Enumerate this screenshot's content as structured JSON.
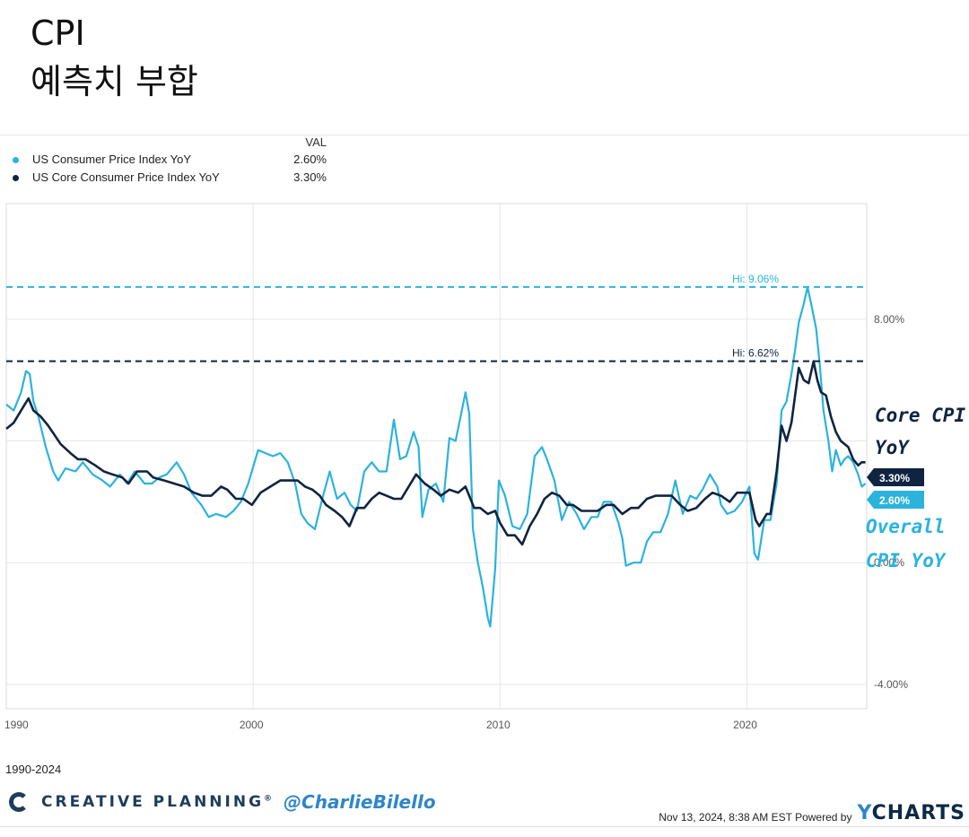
{
  "post": {
    "title": "CPI",
    "subtitle": "예측치 부합"
  },
  "legend": {
    "header": "VAL",
    "items": [
      {
        "name": "US Consumer Price Index YoY",
        "value": "2.60%",
        "color": "#2bb3dd"
      },
      {
        "name": "US Core Consumer Price Index YoY",
        "value": "3.30%",
        "color": "#0f2440"
      }
    ]
  },
  "chart_data": {
    "type": "line",
    "xlim": [
      1990.0,
      2024.85
    ],
    "ylim": [
      -4.8,
      11.8
    ],
    "x_ticks": [
      {
        "value": 1990,
        "label": "1990"
      },
      {
        "value": 2000,
        "label": "2000"
      },
      {
        "value": 2010,
        "label": "2010"
      },
      {
        "value": 2020,
        "label": "2020"
      }
    ],
    "y_ticks": [
      {
        "value": 8,
        "label": "8.00%"
      },
      {
        "value": 0,
        "label": "0.00%"
      },
      {
        "value": -4,
        "label": "-4.00%"
      }
    ],
    "y_gridlines": [
      8,
      4,
      0,
      -4
    ],
    "x_gridlines": [
      2000,
      2010,
      2020
    ],
    "range_label": "1990-2024",
    "hi_lines": [
      {
        "series": "US Consumer Price Index YoY",
        "value": 9.06,
        "label": "Hi: 9.06%",
        "color": "#2bb3dd"
      },
      {
        "series": "US Core Consumer Price Index YoY",
        "value": 6.62,
        "label": "Hi: 6.62%",
        "color": "#0f2440"
      }
    ],
    "end_labels": [
      {
        "series": "US Core Consumer Price Index YoY",
        "value": 3.3,
        "label": "3.30%",
        "color": "#0f2440"
      },
      {
        "series": "US Consumer Price Index YoY",
        "value": 2.6,
        "label": "2.60%",
        "color": "#2bb3dd"
      }
    ],
    "series": [
      {
        "name": "US Consumer Price Index YoY",
        "color": "#2bb3dd",
        "points": [
          [
            1990.0,
            5.2
          ],
          [
            1990.3,
            5.0
          ],
          [
            1990.6,
            5.6
          ],
          [
            1990.8,
            6.3
          ],
          [
            1990.95,
            6.2
          ],
          [
            1991.1,
            5.3
          ],
          [
            1991.3,
            4.8
          ],
          [
            1991.6,
            3.8
          ],
          [
            1991.9,
            3.0
          ],
          [
            1992.1,
            2.7
          ],
          [
            1992.4,
            3.1
          ],
          [
            1992.8,
            3.0
          ],
          [
            1993.1,
            3.3
          ],
          [
            1993.5,
            2.9
          ],
          [
            1993.9,
            2.7
          ],
          [
            1994.2,
            2.5
          ],
          [
            1994.6,
            2.9
          ],
          [
            1994.9,
            2.6
          ],
          [
            1995.2,
            3.0
          ],
          [
            1995.6,
            2.6
          ],
          [
            1995.9,
            2.6
          ],
          [
            1996.2,
            2.8
          ],
          [
            1996.5,
            2.9
          ],
          [
            1996.9,
            3.3
          ],
          [
            1997.2,
            2.9
          ],
          [
            1997.5,
            2.3
          ],
          [
            1997.9,
            1.9
          ],
          [
            1998.2,
            1.5
          ],
          [
            1998.5,
            1.6
          ],
          [
            1998.9,
            1.5
          ],
          [
            1999.2,
            1.7
          ],
          [
            1999.5,
            2.0
          ],
          [
            1999.8,
            2.6
          ],
          [
            2000.2,
            3.7
          ],
          [
            2000.5,
            3.6
          ],
          [
            2000.8,
            3.5
          ],
          [
            2001.1,
            3.6
          ],
          [
            2001.4,
            3.3
          ],
          [
            2001.7,
            2.6
          ],
          [
            2001.95,
            1.6
          ],
          [
            2002.2,
            1.3
          ],
          [
            2002.5,
            1.1
          ],
          [
            2002.8,
            2.1
          ],
          [
            2003.1,
            3.0
          ],
          [
            2003.4,
            2.1
          ],
          [
            2003.7,
            2.3
          ],
          [
            2003.95,
            1.9
          ],
          [
            2004.2,
            1.7
          ],
          [
            2004.5,
            3.0
          ],
          [
            2004.8,
            3.3
          ],
          [
            2005.1,
            3.0
          ],
          [
            2005.4,
            3.0
          ],
          [
            2005.7,
            4.7
          ],
          [
            2005.95,
            3.4
          ],
          [
            2006.2,
            3.5
          ],
          [
            2006.5,
            4.3
          ],
          [
            2006.7,
            3.8
          ],
          [
            2006.85,
            1.5
          ],
          [
            2007.1,
            2.4
          ],
          [
            2007.4,
            2.6
          ],
          [
            2007.7,
            2.0
          ],
          [
            2007.95,
            4.1
          ],
          [
            2008.2,
            4.0
          ],
          [
            2008.5,
            5.2
          ],
          [
            2008.6,
            5.6
          ],
          [
            2008.75,
            4.9
          ],
          [
            2008.9,
            1.1
          ],
          [
            2009.1,
            0.0
          ],
          [
            2009.3,
            -0.8
          ],
          [
            2009.5,
            -1.8
          ],
          [
            2009.6,
            -2.1
          ],
          [
            2009.8,
            -0.2
          ],
          [
            2009.95,
            2.7
          ],
          [
            2010.2,
            2.2
          ],
          [
            2010.5,
            1.2
          ],
          [
            2010.8,
            1.1
          ],
          [
            2011.1,
            1.6
          ],
          [
            2011.4,
            3.5
          ],
          [
            2011.7,
            3.8
          ],
          [
            2011.9,
            3.4
          ],
          [
            2012.2,
            2.7
          ],
          [
            2012.5,
            1.4
          ],
          [
            2012.8,
            2.0
          ],
          [
            2013.1,
            1.6
          ],
          [
            2013.4,
            1.1
          ],
          [
            2013.7,
            1.5
          ],
          [
            2013.95,
            1.5
          ],
          [
            2014.2,
            2.0
          ],
          [
            2014.5,
            2.0
          ],
          [
            2014.8,
            1.3
          ],
          [
            2014.95,
            0.8
          ],
          [
            2015.1,
            -0.1
          ],
          [
            2015.4,
            0.0
          ],
          [
            2015.7,
            0.0
          ],
          [
            2015.95,
            0.7
          ],
          [
            2016.2,
            1.0
          ],
          [
            2016.5,
            1.0
          ],
          [
            2016.8,
            1.6
          ],
          [
            2017.1,
            2.7
          ],
          [
            2017.4,
            1.6
          ],
          [
            2017.7,
            2.2
          ],
          [
            2017.95,
            2.1
          ],
          [
            2018.2,
            2.4
          ],
          [
            2018.5,
            2.9
          ],
          [
            2018.8,
            2.5
          ],
          [
            2018.95,
            1.9
          ],
          [
            2019.2,
            1.6
          ],
          [
            2019.5,
            1.7
          ],
          [
            2019.8,
            2.0
          ],
          [
            2020.1,
            2.5
          ],
          [
            2020.3,
            0.3
          ],
          [
            2020.45,
            0.1
          ],
          [
            2020.7,
            1.4
          ],
          [
            2020.95,
            1.4
          ],
          [
            2021.2,
            2.6
          ],
          [
            2021.4,
            5.0
          ],
          [
            2021.6,
            5.3
          ],
          [
            2021.8,
            6.2
          ],
          [
            2021.95,
            7.0
          ],
          [
            2022.1,
            7.9
          ],
          [
            2022.3,
            8.5
          ],
          [
            2022.45,
            9.06
          ],
          [
            2022.6,
            8.5
          ],
          [
            2022.8,
            7.7
          ],
          [
            2022.95,
            6.5
          ],
          [
            2023.1,
            5.0
          ],
          [
            2023.3,
            4.0
          ],
          [
            2023.45,
            3.0
          ],
          [
            2023.6,
            3.7
          ],
          [
            2023.8,
            3.2
          ],
          [
            2023.95,
            3.4
          ],
          [
            2024.1,
            3.5
          ],
          [
            2024.3,
            3.3
          ],
          [
            2024.5,
            2.9
          ],
          [
            2024.65,
            2.5
          ],
          [
            2024.8,
            2.6
          ]
        ]
      },
      {
        "name": "US Core Consumer Price Index YoY",
        "color": "#0f2440",
        "points": [
          [
            1990.0,
            4.4
          ],
          [
            1990.3,
            4.6
          ],
          [
            1990.6,
            5.0
          ],
          [
            1990.9,
            5.4
          ],
          [
            1991.1,
            5.0
          ],
          [
            1991.4,
            4.8
          ],
          [
            1991.7,
            4.5
          ],
          [
            1991.95,
            4.2
          ],
          [
            1992.2,
            3.9
          ],
          [
            1992.6,
            3.6
          ],
          [
            1992.9,
            3.4
          ],
          [
            1993.2,
            3.4
          ],
          [
            1993.6,
            3.2
          ],
          [
            1993.95,
            3.0
          ],
          [
            1994.3,
            2.9
          ],
          [
            1994.7,
            2.8
          ],
          [
            1994.95,
            2.6
          ],
          [
            1995.3,
            3.0
          ],
          [
            1995.7,
            3.0
          ],
          [
            1995.95,
            2.8
          ],
          [
            1996.4,
            2.7
          ],
          [
            1996.8,
            2.6
          ],
          [
            1997.2,
            2.5
          ],
          [
            1997.6,
            2.3
          ],
          [
            1997.95,
            2.2
          ],
          [
            1998.3,
            2.2
          ],
          [
            1998.7,
            2.5
          ],
          [
            1998.95,
            2.4
          ],
          [
            1999.3,
            2.1
          ],
          [
            1999.6,
            2.1
          ],
          [
            1999.95,
            1.9
          ],
          [
            2000.3,
            2.3
          ],
          [
            2000.7,
            2.5
          ],
          [
            2001.1,
            2.7
          ],
          [
            2001.5,
            2.7
          ],
          [
            2001.8,
            2.7
          ],
          [
            2002.1,
            2.5
          ],
          [
            2002.4,
            2.4
          ],
          [
            2002.7,
            2.2
          ],
          [
            2002.95,
            1.9
          ],
          [
            2003.3,
            1.7
          ],
          [
            2003.6,
            1.5
          ],
          [
            2003.9,
            1.2
          ],
          [
            2004.2,
            1.8
          ],
          [
            2004.5,
            1.8
          ],
          [
            2004.8,
            2.1
          ],
          [
            2005.1,
            2.3
          ],
          [
            2005.4,
            2.2
          ],
          [
            2005.7,
            2.1
          ],
          [
            2006.0,
            2.1
          ],
          [
            2006.3,
            2.5
          ],
          [
            2006.6,
            2.9
          ],
          [
            2006.95,
            2.6
          ],
          [
            2007.3,
            2.4
          ],
          [
            2007.6,
            2.2
          ],
          [
            2007.95,
            2.4
          ],
          [
            2008.3,
            2.3
          ],
          [
            2008.6,
            2.5
          ],
          [
            2008.95,
            1.8
          ],
          [
            2009.2,
            1.8
          ],
          [
            2009.5,
            1.6
          ],
          [
            2009.8,
            1.7
          ],
          [
            2010.0,
            1.3
          ],
          [
            2010.3,
            0.9
          ],
          [
            2010.6,
            0.9
          ],
          [
            2010.9,
            0.6
          ],
          [
            2011.2,
            1.2
          ],
          [
            2011.5,
            1.6
          ],
          [
            2011.8,
            2.1
          ],
          [
            2012.1,
            2.3
          ],
          [
            2012.4,
            2.2
          ],
          [
            2012.7,
            1.9
          ],
          [
            2012.95,
            1.9
          ],
          [
            2013.3,
            1.7
          ],
          [
            2013.6,
            1.7
          ],
          [
            2013.95,
            1.7
          ],
          [
            2014.3,
            1.9
          ],
          [
            2014.6,
            1.9
          ],
          [
            2014.95,
            1.6
          ],
          [
            2015.3,
            1.8
          ],
          [
            2015.6,
            1.8
          ],
          [
            2015.95,
            2.1
          ],
          [
            2016.3,
            2.2
          ],
          [
            2016.6,
            2.2
          ],
          [
            2016.95,
            2.2
          ],
          [
            2017.3,
            1.9
          ],
          [
            2017.6,
            1.7
          ],
          [
            2017.95,
            1.8
          ],
          [
            2018.3,
            2.1
          ],
          [
            2018.6,
            2.3
          ],
          [
            2018.95,
            2.2
          ],
          [
            2019.3,
            2.0
          ],
          [
            2019.6,
            2.3
          ],
          [
            2019.95,
            2.3
          ],
          [
            2020.1,
            2.3
          ],
          [
            2020.35,
            1.4
          ],
          [
            2020.5,
            1.2
          ],
          [
            2020.8,
            1.6
          ],
          [
            2020.95,
            1.6
          ],
          [
            2021.2,
            3.0
          ],
          [
            2021.4,
            4.5
          ],
          [
            2021.6,
            4.0
          ],
          [
            2021.8,
            4.6
          ],
          [
            2021.95,
            5.5
          ],
          [
            2022.1,
            6.4
          ],
          [
            2022.3,
            6.0
          ],
          [
            2022.5,
            5.9
          ],
          [
            2022.7,
            6.62
          ],
          [
            2022.85,
            6.0
          ],
          [
            2023.0,
            5.6
          ],
          [
            2023.2,
            5.5
          ],
          [
            2023.4,
            4.8
          ],
          [
            2023.6,
            4.3
          ],
          [
            2023.8,
            4.0
          ],
          [
            2023.95,
            3.9
          ],
          [
            2024.1,
            3.8
          ],
          [
            2024.3,
            3.4
          ],
          [
            2024.5,
            3.2
          ],
          [
            2024.65,
            3.3
          ],
          [
            2024.8,
            3.3
          ]
        ]
      }
    ],
    "annotations": [
      {
        "series": "US Core Consumer Price Index YoY",
        "text": "Core CPI",
        "text2": "YoY",
        "color": "#0f2440"
      },
      {
        "series": "US Consumer Price Index YoY",
        "text": "Overall",
        "text2": "CPI YoY",
        "color": "#2bb3dd"
      }
    ]
  },
  "footer": {
    "range": "1990-2024",
    "brand_name": "CREATIVE PLANNING",
    "brand_symbol": "®",
    "handle": "@CharlieBilello",
    "timestamp": "Nov 13, 2024, 8:38 AM EST Powered by",
    "ycharts_y": "Y",
    "ycharts_rest": "CHARTS"
  }
}
